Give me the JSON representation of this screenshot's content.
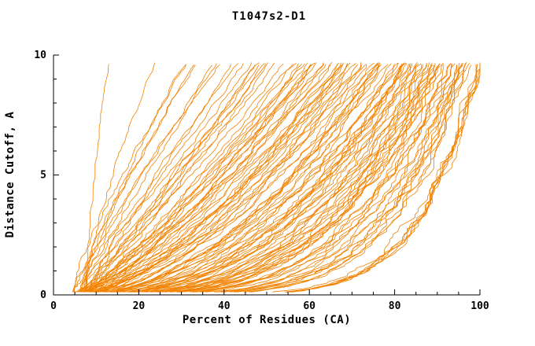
{
  "chart_data": {
    "type": "line",
    "title": "T1047s2-D1",
    "xlabel": "Percent of Residues (CA)",
    "ylabel": "Distance Cutoff, A",
    "xlim": [
      0,
      100
    ],
    "ylim": [
      0,
      10
    ],
    "x_ticks": {
      "major": [
        0,
        20,
        40,
        60,
        80,
        100
      ],
      "minor_step": 5
    },
    "y_ticks": {
      "major": [
        0,
        5,
        10
      ],
      "minor_step": 1
    },
    "grid": false,
    "legend": "none",
    "frame": "left-bottom",
    "line_color": "#f28200",
    "axis_color": "#000000",
    "background": "#ffffff",
    "series_description": "Bundle of per-model accuracy curves: percent of CA residues (x) fitting under a distance cutoff in Angstroms (y). Curves rise from ~4-8% at cutoff ~0.1A; poorest models reach only ~13-20% at cutoff 9.7A (steep left curves), best models reach ~100% (dense cluster at x=85-100 for y=2-10), with a solid wedge of overlapping curves along the bottom from x=5 to x=75 below y=1.5.",
    "curves_spec": {
      "n_curves": 120,
      "seed": 987654321,
      "y_start": 0.12,
      "y_end": 9.7,
      "x_start_range": [
        4,
        8
      ],
      "x_top_range": [
        13,
        100
      ],
      "exponent_range": [
        0.15,
        1.55
      ],
      "quality_bias": 0.42,
      "noise": 1.1,
      "samples": 80,
      "sample_skew": 1.4
    }
  }
}
